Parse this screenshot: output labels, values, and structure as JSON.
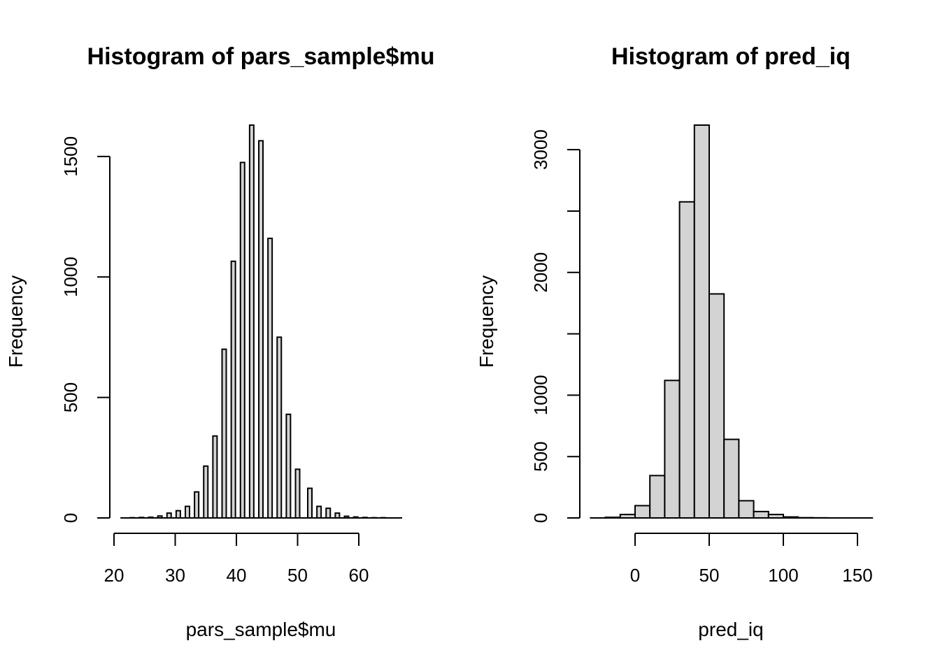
{
  "colors": {
    "bar_fill": "#d3d3d3",
    "bar_stroke": "#000000",
    "background": "#ffffff"
  },
  "chart_data": [
    {
      "type": "bar",
      "title": "Histogram of pars_sample$mu",
      "xlabel": "pars_sample$mu",
      "ylabel": "Frequency",
      "xlim": [
        21,
        67
      ],
      "ylim": [
        0,
        1630
      ],
      "xticks": [
        20,
        30,
        40,
        50,
        60
      ],
      "yticks": [
        0,
        500,
        1000,
        1500
      ],
      "bars": [
        {
          "x": 21.5,
          "value": 0
        },
        {
          "x": 23.0,
          "value": 1
        },
        {
          "x": 24.5,
          "value": 2
        },
        {
          "x": 26.0,
          "value": 3
        },
        {
          "x": 27.5,
          "value": 8
        },
        {
          "x": 29.0,
          "value": 20
        },
        {
          "x": 30.5,
          "value": 30
        },
        {
          "x": 32.0,
          "value": 48
        },
        {
          "x": 33.5,
          "value": 108
        },
        {
          "x": 35.0,
          "value": 215
        },
        {
          "x": 36.5,
          "value": 340
        },
        {
          "x": 38.0,
          "value": 700
        },
        {
          "x": 39.5,
          "value": 1065
        },
        {
          "x": 41.0,
          "value": 1475
        },
        {
          "x": 42.5,
          "value": 1630
        },
        {
          "x": 44.0,
          "value": 1565
        },
        {
          "x": 45.5,
          "value": 1160
        },
        {
          "x": 47.0,
          "value": 750
        },
        {
          "x": 48.5,
          "value": 430
        },
        {
          "x": 50.0,
          "value": 202
        },
        {
          "x": 52.0,
          "value": 123
        },
        {
          "x": 53.5,
          "value": 48
        },
        {
          "x": 55.0,
          "value": 40
        },
        {
          "x": 56.5,
          "value": 20
        },
        {
          "x": 58.0,
          "value": 7
        },
        {
          "x": 59.5,
          "value": 4
        },
        {
          "x": 61.0,
          "value": 2
        },
        {
          "x": 62.5,
          "value": 1
        },
        {
          "x": 64.0,
          "value": 1
        },
        {
          "x": 65.5,
          "value": 0
        }
      ]
    },
    {
      "type": "bar",
      "title": "Histogram of pred_iq",
      "xlabel": "pred_iq",
      "ylabel": "Frequency",
      "xlim": [
        -30,
        160
      ],
      "ylim": [
        0,
        3200
      ],
      "xticks": [
        0,
        50,
        100,
        150
      ],
      "yticks": [
        0,
        500,
        1000,
        1500,
        2000,
        2500,
        3000
      ],
      "ytick_labels_shown": [
        "0",
        "500",
        "1000",
        "",
        "2000",
        "",
        "3000"
      ],
      "bars": [
        {
          "x0": -30,
          "x1": -20,
          "value": 0
        },
        {
          "x0": -20,
          "x1": -10,
          "value": 5
        },
        {
          "x0": -10,
          "x1": 0,
          "value": 28
        },
        {
          "x0": 0,
          "x1": 10,
          "value": 100
        },
        {
          "x0": 10,
          "x1": 20,
          "value": 345
        },
        {
          "x0": 20,
          "x1": 30,
          "value": 1120
        },
        {
          "x0": 30,
          "x1": 40,
          "value": 2575
        },
        {
          "x0": 40,
          "x1": 50,
          "value": 3200
        },
        {
          "x0": 50,
          "x1": 60,
          "value": 1825
        },
        {
          "x0": 60,
          "x1": 70,
          "value": 640
        },
        {
          "x0": 70,
          "x1": 80,
          "value": 140
        },
        {
          "x0": 80,
          "x1": 90,
          "value": 52
        },
        {
          "x0": 90,
          "x1": 100,
          "value": 28
        },
        {
          "x0": 100,
          "x1": 110,
          "value": 8
        },
        {
          "x0": 110,
          "x1": 120,
          "value": 2
        },
        {
          "x0": 120,
          "x1": 130,
          "value": 1
        },
        {
          "x0": 130,
          "x1": 140,
          "value": 0
        },
        {
          "x0": 140,
          "x1": 150,
          "value": 0
        },
        {
          "x0": 150,
          "x1": 160,
          "value": 0
        }
      ]
    }
  ]
}
